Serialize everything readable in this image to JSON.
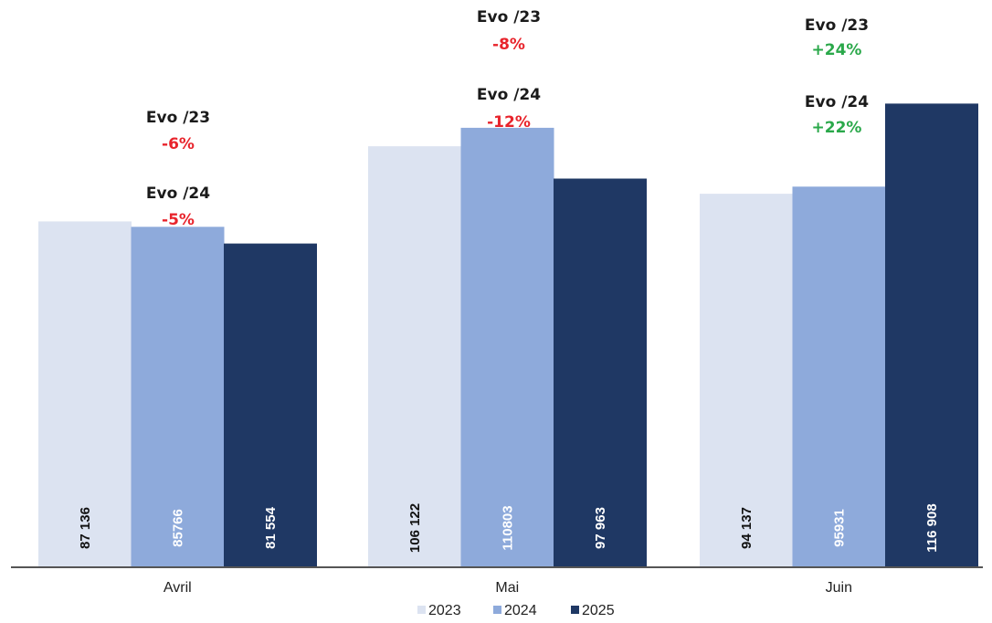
{
  "chart_data": {
    "type": "bar",
    "categories": [
      "Avril",
      "Mai",
      "Juin"
    ],
    "series": [
      {
        "name": "2023",
        "color": "#dce3f1",
        "label_color": "#111111",
        "values": [
          87136,
          106122,
          94137
        ],
        "labels": [
          "87 136",
          "106 122",
          "94 137"
        ]
      },
      {
        "name": "2024",
        "color": "#8eaadb",
        "label_color": "#ffffff",
        "values": [
          85766,
          110803,
          95931
        ],
        "labels": [
          "85766",
          "110803",
          "95931"
        ]
      },
      {
        "name": "2025",
        "color": "#1f3864",
        "label_color": "#ffffff",
        "values": [
          81554,
          97963,
          116908
        ],
        "labels": [
          "81 554",
          "97 963",
          "116 908"
        ]
      }
    ],
    "ylim": [
      0,
      120000
    ],
    "grid": false,
    "legend_position": "bottom",
    "annotations": [
      {
        "category": "Avril",
        "vs23_label": "Evo /23",
        "vs23_value": "-6%",
        "vs23_color": "#e8242c",
        "vs24_label": "Evo /24",
        "vs24_value": "-5%",
        "vs24_color": "#e8242c"
      },
      {
        "category": "Mai",
        "vs23_label": "Evo /23",
        "vs23_value": "-8%",
        "vs23_color": "#e8242c",
        "vs24_label": "Evo /24",
        "vs24_value": "-12%",
        "vs24_color": "#e8242c"
      },
      {
        "category": "Juin",
        "vs23_label": "Evo /23",
        "vs23_value": "+24%",
        "vs23_color": "#2aa84a",
        "vs24_label": "Evo /24",
        "vs24_value": "+22%",
        "vs24_color": "#2aa84a"
      }
    ]
  }
}
